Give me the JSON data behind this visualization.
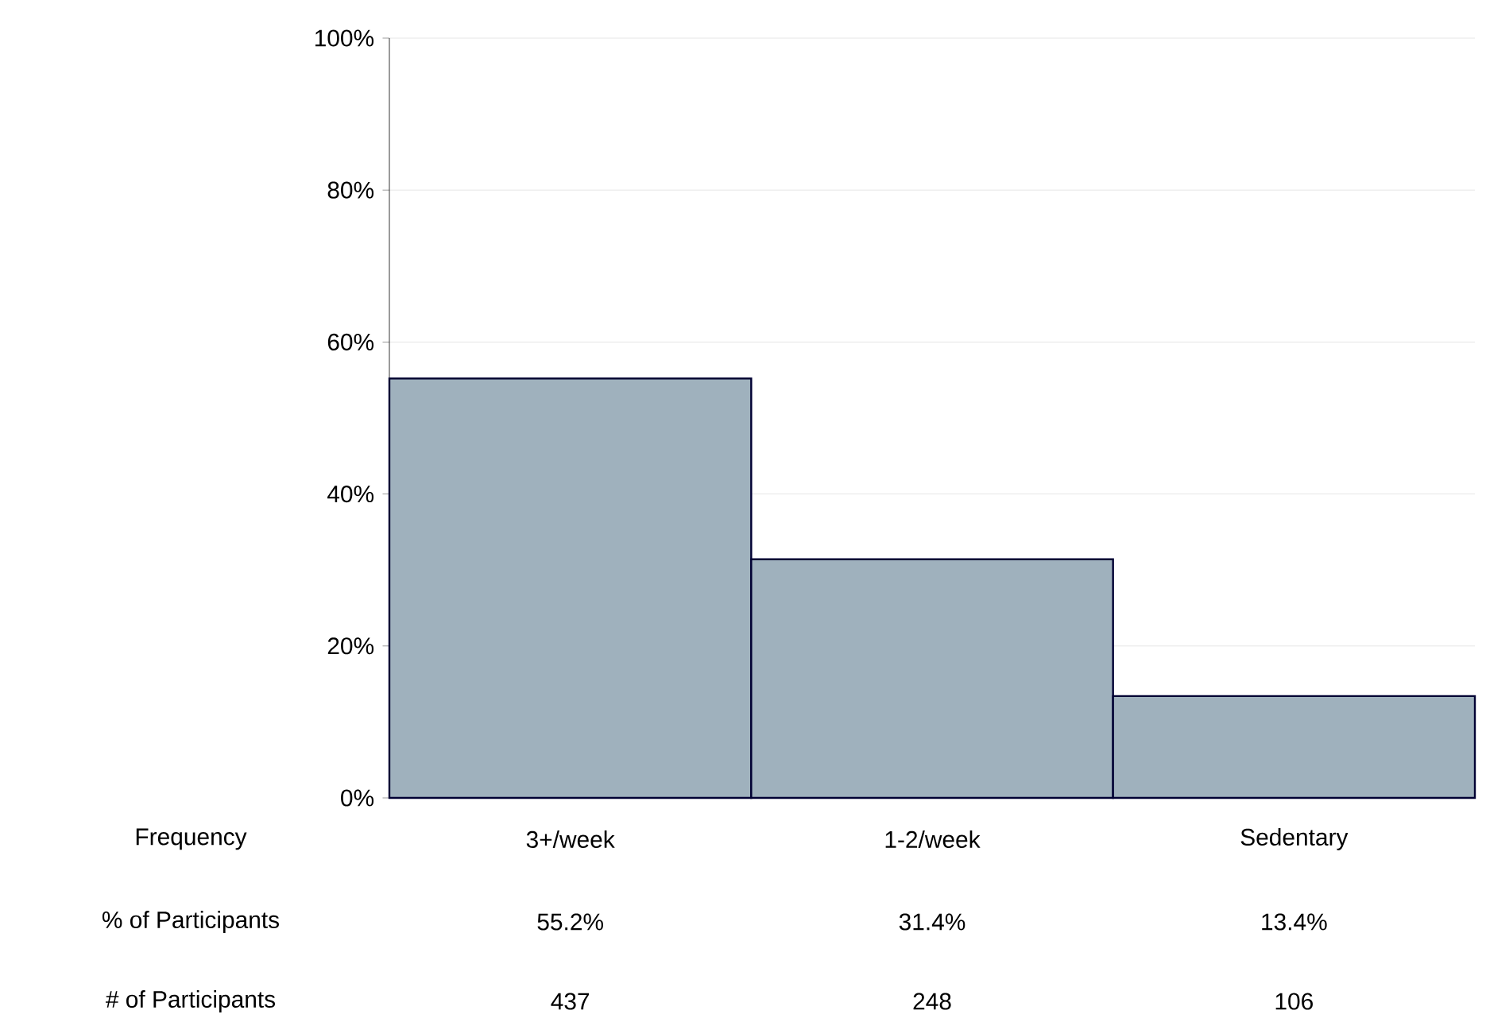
{
  "chart_data": {
    "type": "bar",
    "categories": [
      "3+/week",
      "1-2/week",
      "Sedentary"
    ],
    "values": [
      55.2,
      31.4,
      13.4
    ],
    "color": "#9fb1bd",
    "value_labels": [
      "55.2%",
      "31.4%",
      "13.4%"
    ],
    "xlabel": "Frequency",
    "annotations": [
      "% of Participants",
      "# of Participants",
      "437",
      "248",
      "106"
    ],
    "ylim": [
      0,
      100
    ],
    "yticks": [
      {
        "value": 0,
        "label": "0%"
      },
      {
        "value": 20,
        "label": "20%"
      },
      {
        "value": 40,
        "label": "40%"
      },
      {
        "value": 60,
        "label": "60%"
      },
      {
        "value": 80,
        "label": "80%"
      },
      {
        "value": 100,
        "label": "100%"
      }
    ],
    "grid": "y"
  }
}
